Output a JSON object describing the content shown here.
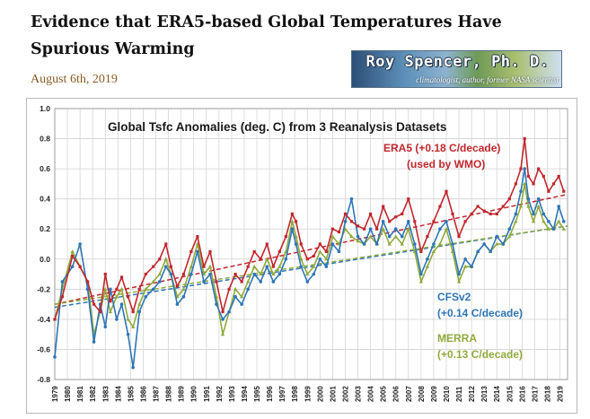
{
  "post": {
    "title": "Evidence that ERA5-based Global Temperatures Have Spurious Warming",
    "date": "August 6th, 2019"
  },
  "banner": {
    "name": "Roy Spencer, Ph. D.",
    "tagline": "climatologist, author, former NASA scientist"
  },
  "chart_data": {
    "type": "line",
    "title": "Global Tsfc Anomalies (deg. C) from 3 Reanalysis Datasets",
    "xlabel": "",
    "ylabel": "",
    "ylim": [
      -0.8,
      1.0
    ],
    "xlim": [
      1979,
      2019.6
    ],
    "grid": true,
    "legend": "inline labels",
    "x_ticks": [
      "1979",
      "1980",
      "1981",
      "1982",
      "1983",
      "1984",
      "1985",
      "1986",
      "1987",
      "1988",
      "1989",
      "1990",
      "1991",
      "1992",
      "1993",
      "1994",
      "1995",
      "1996",
      "1997",
      "1998",
      "1999",
      "2000",
      "2001",
      "2002",
      "2003",
      "2004",
      "2005",
      "2006",
      "2007",
      "2008",
      "2009",
      "2010",
      "2011",
      "2012",
      "2013",
      "2014",
      "2015",
      "2016",
      "2017",
      "2018",
      "2019"
    ],
    "y_ticks": [
      "-0.8",
      "-0.6",
      "-0.4",
      "-0.2",
      "0.0",
      "0.2",
      "0.4",
      "0.6",
      "0.8",
      "1.0"
    ],
    "series": [
      {
        "name": "ERA5",
        "label_lines": [
          "ERA5 (+0.18 C/decade)",
          "(used by WMO)"
        ],
        "color": "#c0272d",
        "trend_per_decade": 0.18,
        "trend_endpoints": [
          -0.3,
          0.43
        ],
        "x": [
          1979.0,
          1979.6,
          1980.4,
          1981.0,
          1981.6,
          1982.1,
          1982.6,
          1983.0,
          1983.4,
          1983.9,
          1984.3,
          1984.8,
          1985.2,
          1985.7,
          1986.2,
          1986.8,
          1987.3,
          1987.8,
          1988.2,
          1988.7,
          1989.2,
          1989.8,
          1990.3,
          1990.8,
          1991.3,
          1991.8,
          1992.3,
          1992.8,
          1993.3,
          1993.8,
          1994.3,
          1994.8,
          1995.3,
          1995.8,
          1996.3,
          1996.8,
          1997.3,
          1997.8,
          1998.1,
          1998.5,
          1999.0,
          1999.5,
          2000.0,
          2000.5,
          2001.0,
          2001.5,
          2002.0,
          2002.5,
          2003.0,
          2003.5,
          2004.0,
          2004.5,
          2005.0,
          2005.5,
          2006.0,
          2006.5,
          2007.0,
          2007.5,
          2008.0,
          2008.5,
          2009.0,
          2009.5,
          2010.0,
          2010.5,
          2011.0,
          2011.5,
          2012.0,
          2012.5,
          2013.0,
          2013.5,
          2014.0,
          2014.5,
          2015.0,
          2015.5,
          2015.9,
          2016.2,
          2016.5,
          2016.9,
          2017.3,
          2017.7,
          2018.1,
          2018.5,
          2018.9,
          2019.3
        ],
        "values": [
          -0.4,
          -0.25,
          0.02,
          -0.05,
          -0.15,
          -0.3,
          -0.35,
          -0.1,
          -0.28,
          -0.2,
          -0.12,
          -0.25,
          -0.35,
          -0.2,
          -0.1,
          -0.05,
          0.0,
          0.1,
          -0.05,
          -0.18,
          -0.1,
          0.05,
          0.15,
          -0.05,
          0.05,
          -0.15,
          -0.35,
          -0.2,
          -0.1,
          -0.15,
          -0.05,
          0.05,
          0.0,
          0.1,
          -0.05,
          0.05,
          0.15,
          0.3,
          0.25,
          0.1,
          0.0,
          0.02,
          0.1,
          0.05,
          0.2,
          0.18,
          0.3,
          0.25,
          0.22,
          0.2,
          0.3,
          0.2,
          0.35,
          0.25,
          0.28,
          0.3,
          0.4,
          0.25,
          0.05,
          0.15,
          0.25,
          0.35,
          0.45,
          0.3,
          0.15,
          0.25,
          0.3,
          0.35,
          0.32,
          0.3,
          0.3,
          0.35,
          0.4,
          0.5,
          0.6,
          0.8,
          0.55,
          0.5,
          0.6,
          0.55,
          0.45,
          0.5,
          0.55,
          0.45
        ]
      },
      {
        "name": "CFSv2",
        "label_lines": [
          "CFSv2",
          "(+0.14 C/decade)"
        ],
        "color": "#2e75b6",
        "trend_per_decade": 0.14,
        "trend_endpoints": [
          -0.32,
          0.22
        ],
        "x": [
          1979.0,
          1979.6,
          1980.4,
          1981.0,
          1981.6,
          1982.1,
          1982.6,
          1983.0,
          1983.4,
          1983.9,
          1984.3,
          1984.8,
          1985.2,
          1985.7,
          1986.2,
          1986.8,
          1987.3,
          1987.8,
          1988.2,
          1988.7,
          1989.2,
          1989.8,
          1990.3,
          1990.8,
          1991.3,
          1991.8,
          1992.3,
          1992.8,
          1993.3,
          1993.8,
          1994.3,
          1994.8,
          1995.3,
          1995.8,
          1996.3,
          1996.8,
          1997.3,
          1997.8,
          1998.1,
          1998.5,
          1999.0,
          1999.5,
          2000.0,
          2000.5,
          2001.0,
          2001.5,
          2002.0,
          2002.5,
          2003.0,
          2003.5,
          2004.0,
          2004.5,
          2005.0,
          2005.5,
          2006.0,
          2006.5,
          2007.0,
          2007.5,
          2008.0,
          2008.5,
          2009.0,
          2009.5,
          2010.0,
          2010.5,
          2011.0,
          2011.5,
          2012.0,
          2012.5,
          2013.0,
          2013.5,
          2014.0,
          2014.5,
          2015.0,
          2015.5,
          2015.9,
          2016.2,
          2016.5,
          2016.9,
          2017.3,
          2017.7,
          2018.1,
          2018.5,
          2018.9,
          2019.3
        ],
        "values": [
          -0.65,
          -0.15,
          -0.05,
          0.1,
          -0.2,
          -0.55,
          -0.3,
          -0.45,
          -0.2,
          -0.4,
          -0.3,
          -0.5,
          -0.72,
          -0.35,
          -0.25,
          -0.2,
          -0.15,
          -0.05,
          -0.1,
          -0.3,
          -0.25,
          -0.1,
          0.05,
          -0.15,
          -0.1,
          -0.3,
          -0.4,
          -0.35,
          -0.25,
          -0.3,
          -0.2,
          -0.1,
          -0.15,
          -0.05,
          -0.15,
          -0.1,
          0.0,
          0.2,
          0.1,
          -0.05,
          -0.15,
          -0.1,
          0.0,
          -0.05,
          0.1,
          0.05,
          0.25,
          0.4,
          0.15,
          0.1,
          0.2,
          0.1,
          0.25,
          0.15,
          0.2,
          0.15,
          0.25,
          0.1,
          -0.1,
          0.0,
          0.1,
          0.2,
          0.25,
          0.1,
          -0.1,
          0.0,
          -0.05,
          0.05,
          0.1,
          0.05,
          0.15,
          0.1,
          0.2,
          0.3,
          0.45,
          0.6,
          0.4,
          0.3,
          0.4,
          0.3,
          0.25,
          0.2,
          0.35,
          0.25
        ]
      },
      {
        "name": "MERRA",
        "label_lines": [
          "MERRA",
          "(+0.13 C/decade)"
        ],
        "color": "#8faa3c",
        "trend_per_decade": 0.13,
        "trend_endpoints": [
          -0.3,
          0.22
        ],
        "x": [
          1979.0,
          1979.6,
          1980.4,
          1981.0,
          1981.6,
          1982.1,
          1982.6,
          1983.0,
          1983.4,
          1983.9,
          1984.3,
          1984.8,
          1985.2,
          1985.7,
          1986.2,
          1986.8,
          1987.3,
          1987.8,
          1988.2,
          1988.7,
          1989.2,
          1989.8,
          1990.3,
          1990.8,
          1991.3,
          1991.8,
          1992.3,
          1992.8,
          1993.3,
          1993.8,
          1994.3,
          1994.8,
          1995.3,
          1995.8,
          1996.3,
          1996.8,
          1997.3,
          1997.8,
          1998.1,
          1998.5,
          1999.0,
          1999.5,
          2000.0,
          2000.5,
          2001.0,
          2001.5,
          2002.0,
          2002.5,
          2003.0,
          2003.5,
          2004.0,
          2004.5,
          2005.0,
          2005.5,
          2006.0,
          2006.5,
          2007.0,
          2007.5,
          2008.0,
          2008.5,
          2009.0,
          2009.5,
          2010.0,
          2010.5,
          2011.0,
          2011.5,
          2012.0,
          2012.5,
          2013.0,
          2013.5,
          2014.0,
          2014.5,
          2015.0,
          2015.5,
          2015.9,
          2016.2,
          2016.5,
          2016.9,
          2017.3,
          2017.7,
          2018.1,
          2018.5,
          2018.9,
          2019.3
        ],
        "values": [
          -0.4,
          -0.2,
          0.05,
          -0.05,
          -0.15,
          -0.5,
          -0.35,
          -0.2,
          -0.35,
          -0.25,
          -0.2,
          -0.4,
          -0.45,
          -0.3,
          -0.2,
          -0.15,
          -0.1,
          0.0,
          -0.1,
          -0.25,
          -0.2,
          -0.05,
          0.1,
          -0.1,
          -0.05,
          -0.25,
          -0.5,
          -0.35,
          -0.2,
          -0.25,
          -0.15,
          -0.05,
          -0.1,
          0.0,
          -0.1,
          -0.05,
          0.05,
          0.25,
          0.15,
          0.0,
          -0.1,
          -0.05,
          0.05,
          0.0,
          0.15,
          0.1,
          0.2,
          0.15,
          0.12,
          0.1,
          0.15,
          0.1,
          0.2,
          0.1,
          0.15,
          0.1,
          0.2,
          0.05,
          -0.15,
          -0.05,
          0.05,
          0.1,
          0.2,
          0.05,
          -0.15,
          -0.05,
          -0.05,
          0.05,
          0.1,
          0.05,
          0.1,
          0.1,
          0.15,
          0.25,
          0.35,
          0.5,
          0.35,
          0.25,
          0.35,
          0.25,
          0.2,
          0.2,
          0.25,
          0.2
        ]
      }
    ]
  }
}
